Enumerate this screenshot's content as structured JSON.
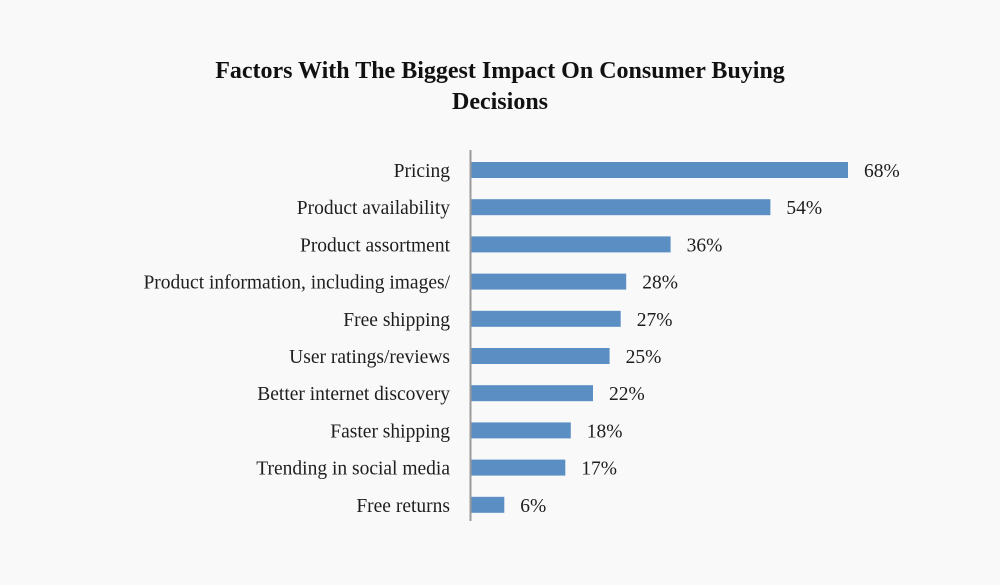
{
  "chart_data": {
    "type": "bar",
    "orientation": "horizontal",
    "title": "Factors With The Biggest Impact On Consumer Buying Decisions",
    "title_lines": [
      "Factors With The Biggest Impact On Consumer Buying",
      "Decisions"
    ],
    "xlabel": "",
    "ylabel": "",
    "categories": [
      "Pricing",
      "Product availability",
      "Product assortment",
      "Product information, including images/",
      "Free shipping",
      "User ratings/reviews",
      "Better internet discovery",
      "Faster shipping",
      "Trending in social media",
      "Free returns"
    ],
    "values": [
      68,
      54,
      36,
      28,
      27,
      25,
      22,
      18,
      17,
      6
    ],
    "value_labels": [
      "68%",
      "54%",
      "36%",
      "28%",
      "27%",
      "25%",
      "22%",
      "18%",
      "17%",
      "6%"
    ],
    "unit": "%",
    "xlim": [
      0,
      68
    ],
    "grid": false,
    "legend": "none",
    "bar_color": "#5b8fc4",
    "axis_color": "#9a9a9a"
  }
}
